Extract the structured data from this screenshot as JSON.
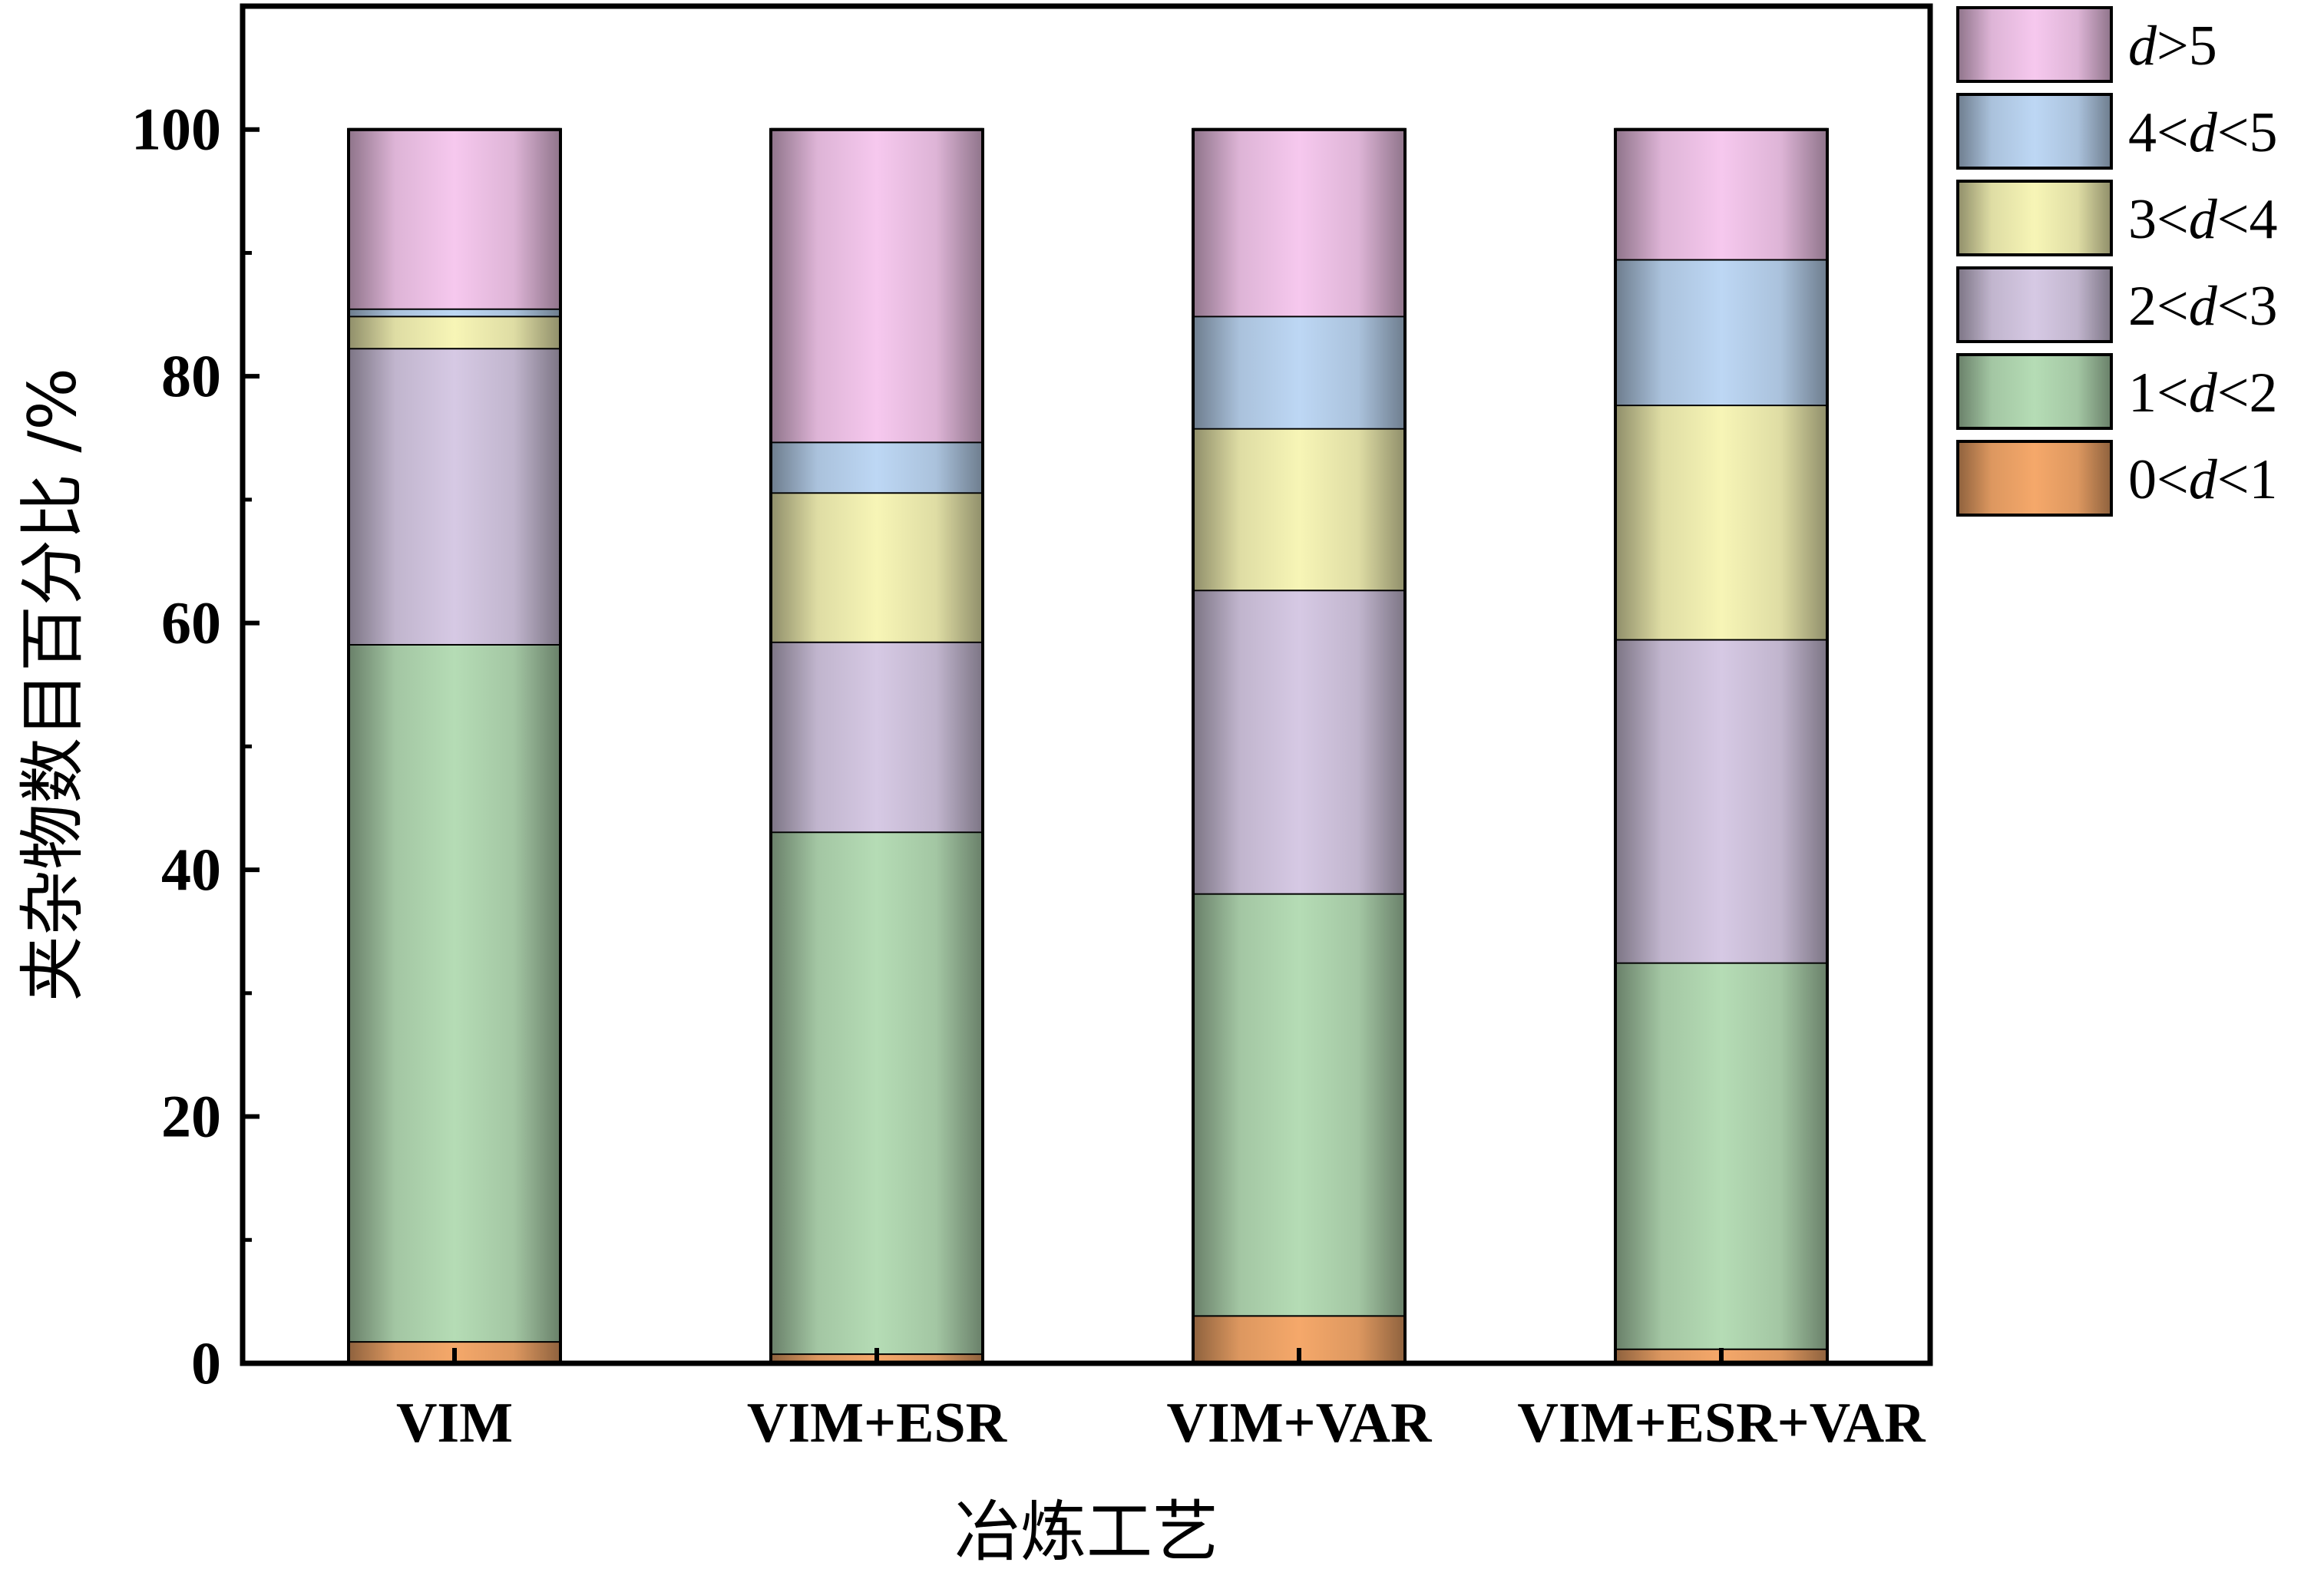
{
  "chart_data": {
    "type": "bar",
    "stacked": true,
    "categories": [
      "VIM",
      "VIM+ESR",
      "VIM+VAR",
      "VIM+ESR+VAR"
    ],
    "series": [
      {
        "name": "0<d<1",
        "label_parts": [
          "0<",
          "d",
          "<1"
        ],
        "color": "#F5A86A",
        "values": [
          1.8,
          0.8,
          3.9,
          1.2
        ]
      },
      {
        "name": "1<d<2",
        "label_parts": [
          "1<",
          "d",
          "<2"
        ],
        "color": "#B5DCB5",
        "values": [
          56.5,
          42.3,
          34.2,
          31.3
        ]
      },
      {
        "name": "2<d<3",
        "label_parts": [
          "2<",
          "d",
          "<3"
        ],
        "color": "#D6C9E4",
        "values": [
          24.0,
          15.4,
          24.6,
          26.2
        ]
      },
      {
        "name": "3<d<4",
        "label_parts": [
          "3<",
          "d",
          "<4"
        ],
        "color": "#F7F5B6",
        "values": [
          2.6,
          12.1,
          13.1,
          19.0
        ]
      },
      {
        "name": "4<d<5",
        "label_parts": [
          "4<",
          "d",
          "<5"
        ],
        "color": "#BDD7F4",
        "values": [
          0.6,
          4.1,
          9.1,
          11.8
        ]
      },
      {
        "name": "d>5",
        "label_parts": [
          "",
          "d",
          ">5"
        ],
        "color": "#F6C8EE",
        "values": [
          14.5,
          25.3,
          15.1,
          10.5
        ]
      }
    ],
    "xlabel": "冶炼工艺",
    "ylabel": "夹杂物数目百分比 /%",
    "ylim": [
      0,
      110
    ],
    "yticks": [
      "0",
      "20",
      "40",
      "60",
      "80",
      "100"
    ],
    "ytick_values": [
      0,
      20,
      40,
      60,
      80,
      100
    ],
    "grid": false,
    "legend_position": "top-right-outside"
  }
}
